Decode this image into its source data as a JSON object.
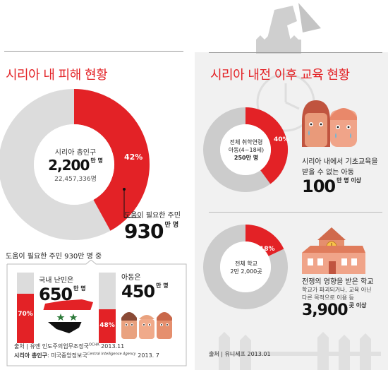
{
  "left": {
    "title": "시리아 내 피해 현황",
    "donut": {
      "label": "시리아 총인구",
      "value": "2,200",
      "unit": "만 명",
      "exact": "22,457,336명",
      "percent": "42%",
      "percent_value": 42,
      "color_main": "#e32226",
      "color_rest": "#dcdcdc"
    },
    "needs": {
      "label": "도움이 필요한 주민",
      "value": "930",
      "unit": "만 명"
    },
    "sub_header": "도움이 필요한 주민 930만 명 중",
    "refugees": {
      "label": "국내 난민은",
      "value": "650",
      "unit": "만 명",
      "percent": "70%",
      "percent_value": 70
    },
    "children": {
      "label": "아동은",
      "value": "450",
      "unit": "만 명",
      "percent": "48%",
      "percent_value": 48
    },
    "source_1": "출처 | 유엔 인도주의업무조정국",
    "source_1_sup": "OCHA",
    "source_1_date": "2013.11",
    "source_2_label": "시리아 총인구",
    "source_2": ": 미국중앙정보국",
    "source_2_sup": "Central Intelligence Agency",
    "source_2_date": "2013. 7"
  },
  "right": {
    "title": "시리아 내전 이후 교육 현황",
    "donut1": {
      "line1": "전체 취학연령",
      "line2": "아동(4~18세)",
      "line3": "250만 명",
      "percent": "40%",
      "percent_value": 40
    },
    "children_out": {
      "line1": "시리아 내에서 기초교육을",
      "line2": "받을 수 없는 아동",
      "value": "100",
      "unit": "만 명 이상"
    },
    "donut2": {
      "line1": "전체 학교",
      "line2": "2만 2,000곳",
      "percent": "18%",
      "percent_value": 18
    },
    "schools": {
      "line1": "전쟁의 영향을 받은 학교",
      "line2": "학교가 파괴되거나, 교육 아닌",
      "line3": "다른 목적으로 이용 등",
      "value": "3,900",
      "unit": "곳 이상"
    },
    "source": "출처 | 유니세프 2013.01"
  }
}
